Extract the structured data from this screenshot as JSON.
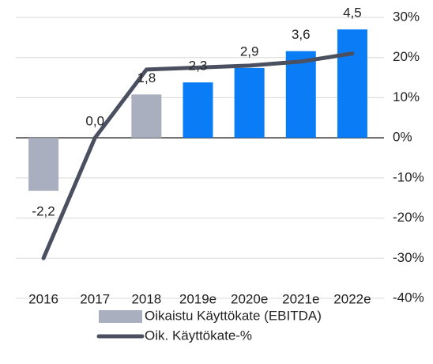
{
  "chart_data": {
    "type": "bar",
    "categories": [
      "2016",
      "2017",
      "2018",
      "2019e",
      "2020e",
      "2021e",
      "2022e"
    ],
    "series": [
      {
        "name": "Oikaistu Käyttökate (EBITDA)",
        "type": "bar",
        "colors": [
          "#a9afbf",
          "#a9afbf",
          "#a9afbf",
          "#0a7cf5",
          "#0a7cf5",
          "#0a7cf5",
          "#0a7cf5"
        ],
        "color": "#a9afbf",
        "values": [
          -2.2,
          0.0,
          1.8,
          2.3,
          2.9,
          3.6,
          4.5
        ],
        "value_labels": [
          "-2,2",
          "0,0",
          "1,8",
          "2,3",
          "2,9",
          "3,6",
          "4,5"
        ]
      },
      {
        "name": "Oik. Käyttökate-%",
        "type": "line",
        "axis": "y2",
        "color": "#4a5060",
        "values": [
          -30,
          0,
          17,
          17.5,
          18,
          19,
          21
        ]
      }
    ],
    "y2lim": [
      -40,
      30
    ],
    "y2ticks": [
      {
        "value": 30,
        "label": "30%"
      },
      {
        "value": 20,
        "label": "20%"
      },
      {
        "value": 10,
        "label": "10%"
      },
      {
        "value": 0,
        "label": "0%"
      },
      {
        "value": -10,
        "label": "-10%"
      },
      {
        "value": -20,
        "label": "-20%"
      },
      {
        "value": -30,
        "label": "-30%"
      },
      {
        "value": -40,
        "label": "-40%"
      }
    ],
    "grid": true
  }
}
